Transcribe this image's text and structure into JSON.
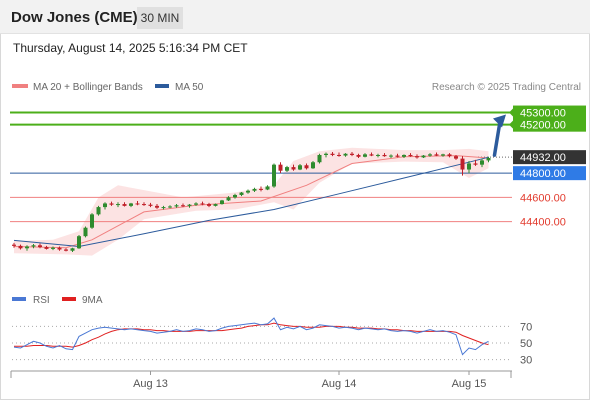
{
  "header": {
    "instrument": "Dow Jones (CME)",
    "timeframe": "30 MIN"
  },
  "timestamp": "Thursday, August 14, 2025 5:16:34 PM CET",
  "legend": [
    {
      "label": "MA 20 + Bollinger Bands",
      "color": "#f08080"
    },
    {
      "label": "MA 50",
      "color": "#2c5b9c"
    }
  ],
  "source": "Research © 2025 Trading Central",
  "rsi_legend": [
    {
      "label": "RSI",
      "color": "#4a78d4"
    },
    {
      "label": "9MA",
      "color": "#e02020"
    }
  ],
  "colors": {
    "up": "#2e8b2e",
    "down": "#c0202a",
    "target": "#4caf1a",
    "pivot": "#2c5b9c",
    "support": "#f08080",
    "current": "#333333",
    "arrow": "#2c5b9c"
  },
  "chart_data": [
    {
      "type": "candlestick",
      "ylim": [
        44100,
        45420
      ],
      "price_levels": [
        {
          "value": 45300,
          "label": "45300.00",
          "kind": "target"
        },
        {
          "value": 45200,
          "label": "45200.00",
          "kind": "target"
        },
        {
          "value": 44932,
          "label": "44932.00",
          "kind": "current"
        },
        {
          "value": 44800,
          "label": "44800.00",
          "kind": "pivot"
        },
        {
          "value": 44600,
          "label": "44600.00",
          "kind": "support"
        },
        {
          "value": 44400,
          "label": "44400.00",
          "kind": "support"
        }
      ],
      "x_ticks": [
        "Aug 13",
        "Aug 14",
        "Aug 15"
      ],
      "ohlc": [
        [
          44210,
          44225,
          44185,
          44200
        ],
        [
          44200,
          44210,
          44170,
          44180
        ],
        [
          44180,
          44205,
          44160,
          44195
        ],
        [
          44195,
          44215,
          44180,
          44205
        ],
        [
          44205,
          44220,
          44180,
          44190
        ],
        [
          44190,
          44200,
          44170,
          44175
        ],
        [
          44175,
          44195,
          44165,
          44185
        ],
        [
          44185,
          44195,
          44160,
          44170
        ],
        [
          44170,
          44180,
          44155,
          44160
        ],
        [
          44160,
          44185,
          44150,
          44180
        ],
        [
          44180,
          44290,
          44175,
          44280
        ],
        [
          44280,
          44360,
          44270,
          44350
        ],
        [
          44350,
          44470,
          44340,
          44460
        ],
        [
          44460,
          44530,
          44450,
          44520
        ],
        [
          44520,
          44560,
          44500,
          44550
        ],
        [
          44550,
          44565,
          44530,
          44540
        ],
        [
          44540,
          44560,
          44520,
          44545
        ],
        [
          44545,
          44560,
          44525,
          44530
        ],
        [
          44530,
          44555,
          44520,
          44550
        ],
        [
          44550,
          44570,
          44535,
          44545
        ],
        [
          44545,
          44560,
          44530,
          44540
        ],
        [
          44540,
          44555,
          44520,
          44530
        ],
        [
          44530,
          44545,
          44505,
          44515
        ],
        [
          44515,
          44530,
          44500,
          44520
        ],
        [
          44520,
          44535,
          44510,
          44525
        ],
        [
          44525,
          44545,
          44515,
          44535
        ],
        [
          44535,
          44550,
          44520,
          44530
        ],
        [
          44530,
          44545,
          44515,
          44540
        ],
        [
          44540,
          44560,
          44530,
          44550
        ],
        [
          44550,
          44565,
          44535,
          44545
        ],
        [
          44545,
          44555,
          44520,
          44530
        ],
        [
          44530,
          44550,
          44525,
          44545
        ],
        [
          44545,
          44580,
          44540,
          44575
        ],
        [
          44575,
          44610,
          44570,
          44600
        ],
        [
          44600,
          44630,
          44590,
          44620
        ],
        [
          44620,
          44645,
          44610,
          44640
        ],
        [
          44640,
          44665,
          44630,
          44655
        ],
        [
          44655,
          44680,
          44645,
          44670
        ],
        [
          44670,
          44690,
          44650,
          44665
        ],
        [
          44665,
          44700,
          44660,
          44690
        ],
        [
          44690,
          44880,
          44680,
          44870
        ],
        [
          44870,
          44890,
          44800,
          44820
        ],
        [
          44820,
          44860,
          44810,
          44850
        ],
        [
          44850,
          44870,
          44820,
          44830
        ],
        [
          44830,
          44875,
          44825,
          44865
        ],
        [
          44865,
          44880,
          44830,
          44840
        ],
        [
          44840,
          44900,
          44835,
          44890
        ],
        [
          44890,
          44960,
          44880,
          44950
        ],
        [
          44950,
          44970,
          44930,
          44960
        ],
        [
          44960,
          44975,
          44940,
          44950
        ],
        [
          44950,
          44970,
          44935,
          44945
        ],
        [
          44945,
          44965,
          44935,
          44960
        ],
        [
          44960,
          44975,
          44940,
          44950
        ],
        [
          44950,
          44960,
          44925,
          44935
        ],
        [
          44935,
          44965,
          44930,
          44955
        ],
        [
          44955,
          44970,
          44940,
          44945
        ],
        [
          44945,
          44960,
          44930,
          44950
        ],
        [
          44950,
          44965,
          44935,
          44940
        ],
        [
          44940,
          44955,
          44925,
          44945
        ],
        [
          44945,
          44960,
          44930,
          44935
        ],
        [
          44935,
          44955,
          44925,
          44950
        ],
        [
          44950,
          44965,
          44935,
          44940
        ],
        [
          44940,
          44955,
          44920,
          44930
        ],
        [
          44930,
          44950,
          44925,
          44945
        ],
        [
          44945,
          44965,
          44935,
          44955
        ],
        [
          44955,
          44970,
          44940,
          44945
        ],
        [
          44945,
          44960,
          44935,
          44955
        ],
        [
          44955,
          44965,
          44930,
          44940
        ],
        [
          44940,
          44950,
          44910,
          44920
        ],
        [
          44920,
          44940,
          44780,
          44830
        ],
        [
          44830,
          44900,
          44800,
          44880
        ],
        [
          44880,
          44910,
          44860,
          44870
        ],
        [
          44870,
          44920,
          44850,
          44905
        ],
        [
          44905,
          44935,
          44890,
          44925
        ]
      ],
      "ma50": [
        [
          0,
          44245
        ],
        [
          10,
          44195
        ],
        [
          20,
          44300
        ],
        [
          30,
          44410
        ],
        [
          40,
          44500
        ],
        [
          50,
          44630
        ],
        [
          60,
          44760
        ],
        [
          70,
          44890
        ],
        [
          73,
          44932
        ]
      ],
      "ma20": [
        [
          0,
          44195
        ],
        [
          8,
          44185
        ],
        [
          12,
          44250
        ],
        [
          20,
          44480
        ],
        [
          28,
          44535
        ],
        [
          38,
          44570
        ],
        [
          45,
          44700
        ],
        [
          52,
          44880
        ],
        [
          60,
          44935
        ],
        [
          68,
          44945
        ],
        [
          73,
          44925
        ]
      ],
      "bb_upper": [
        [
          0,
          44240
        ],
        [
          6,
          44250
        ],
        [
          10,
          44320
        ],
        [
          13,
          44600
        ],
        [
          16,
          44700
        ],
        [
          20,
          44660
        ],
        [
          26,
          44600
        ],
        [
          34,
          44640
        ],
        [
          40,
          44700
        ],
        [
          43,
          44900
        ],
        [
          47,
          44980
        ],
        [
          52,
          45010
        ],
        [
          60,
          44990
        ],
        [
          66,
          44990
        ],
        [
          70,
          45000
        ],
        [
          73,
          44980
        ]
      ],
      "bb_lower": [
        [
          0,
          44140
        ],
        [
          8,
          44130
        ],
        [
          12,
          44120
        ],
        [
          16,
          44250
        ],
        [
          20,
          44420
        ],
        [
          28,
          44490
        ],
        [
          34,
          44500
        ],
        [
          40,
          44560
        ],
        [
          43,
          44500
        ],
        [
          47,
          44720
        ],
        [
          52,
          44880
        ],
        [
          60,
          44895
        ],
        [
          66,
          44890
        ],
        [
          70,
          44760
        ],
        [
          73,
          44840
        ]
      ]
    },
    {
      "type": "line",
      "name": "RSI",
      "ylim": [
        15,
        85
      ],
      "y_ticks": [
        70,
        50,
        30
      ],
      "rsi": [
        45,
        44,
        48,
        52,
        50,
        46,
        44,
        47,
        43,
        42,
        58,
        62,
        66,
        68,
        69,
        68,
        67,
        66,
        67,
        66,
        65,
        64,
        62,
        63,
        64,
        66,
        64,
        65,
        67,
        66,
        64,
        65,
        68,
        70,
        71,
        72,
        73,
        74,
        72,
        73,
        80,
        66,
        69,
        67,
        70,
        66,
        68,
        72,
        71,
        70,
        68,
        69,
        68,
        66,
        68,
        67,
        66,
        67,
        65,
        64,
        65,
        64,
        62,
        64,
        66,
        64,
        65,
        63,
        60,
        36,
        44,
        42,
        48,
        52
      ],
      "rsi_ma": [
        46,
        46,
        46,
        47,
        47,
        47,
        46,
        46,
        46,
        45,
        47,
        50,
        54,
        57,
        61,
        64,
        66,
        67,
        67,
        67,
        66,
        66,
        65,
        65,
        64,
        64,
        64,
        64,
        65,
        65,
        65,
        65,
        65,
        66,
        67,
        68,
        70,
        71,
        72,
        72,
        74,
        72,
        71,
        70,
        70,
        69,
        69,
        69,
        70,
        70,
        70,
        69,
        69,
        68,
        68,
        68,
        67,
        67,
        66,
        66,
        65,
        65,
        64,
        64,
        64,
        64,
        64,
        64,
        63,
        59,
        56,
        53,
        50,
        48
      ]
    }
  ]
}
